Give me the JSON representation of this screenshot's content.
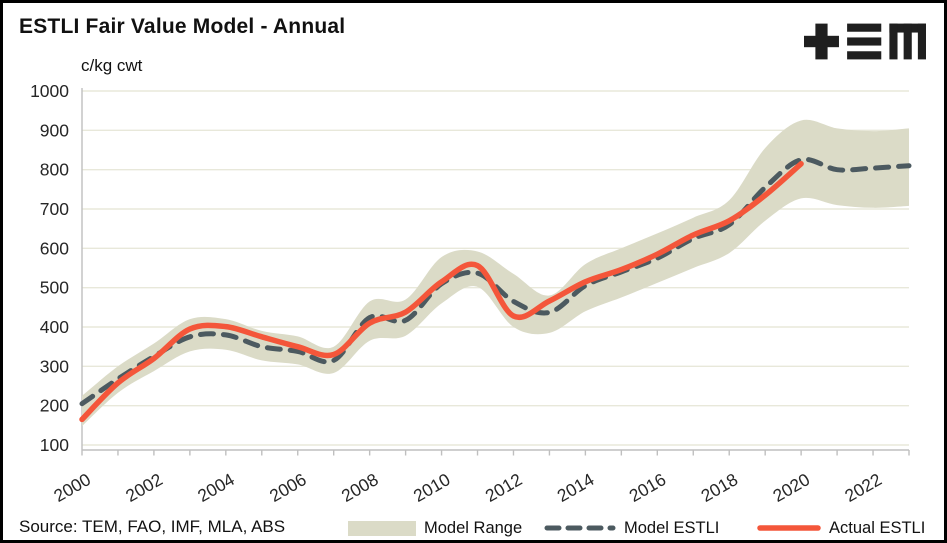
{
  "title": "ESTLI Fair Value Model - Annual",
  "unit_label": "c/kg cwt",
  "source_text": "Source: TEM, FAO, IMF, MLA, ABS",
  "logo_name": "tem-logo",
  "colors": {
    "band": "#dbdbc7",
    "model_line": "#4c5a60",
    "actual_line": "#f4563a",
    "gridline": "#e8e8da",
    "axis": "#bfbfbf",
    "axis_text": "#262626",
    "title_text": "#111111",
    "logo": "#1f1f1f",
    "background": "#ffffff",
    "border": "#000000"
  },
  "legend": {
    "items": [
      {
        "label": "Model Range",
        "type": "band"
      },
      {
        "label": "Model ESTLI",
        "type": "dashed"
      },
      {
        "label": "Actual ESTLI",
        "type": "solid"
      }
    ]
  },
  "chart_data": {
    "type": "line",
    "title": "ESTLI Fair Value Model - Annual",
    "ylabel": "c/kg cwt",
    "xlabel": "",
    "ylim": [
      100,
      1000
    ],
    "ytick_step": 100,
    "xlabel_step": 2,
    "grid": true,
    "legend_position": "bottom",
    "x": [
      2000,
      2001,
      2002,
      2003,
      2004,
      2005,
      2006,
      2007,
      2008,
      2009,
      2010,
      2011,
      2012,
      2013,
      2014,
      2015,
      2016,
      2017,
      2018,
      2019,
      2020,
      2021,
      2022,
      2023
    ],
    "series": [
      {
        "name": "Model Range (upper)",
        "role": "band_top",
        "values": [
          225,
          300,
          358,
          420,
          420,
          390,
          376,
          350,
          465,
          470,
          578,
          592,
          535,
          480,
          560,
          600,
          638,
          678,
          722,
          855,
          925,
          905,
          898,
          905
        ]
      },
      {
        "name": "Model Range (lower)",
        "role": "band_bottom",
        "values": [
          148,
          233,
          288,
          338,
          342,
          315,
          305,
          283,
          365,
          378,
          460,
          502,
          400,
          385,
          440,
          475,
          512,
          550,
          588,
          670,
          727,
          710,
          703,
          708
        ]
      },
      {
        "name": "Model ESTLI",
        "role": "dashed_line",
        "values": [
          205,
          268,
          325,
          375,
          380,
          350,
          338,
          315,
          424,
          417,
          510,
          537,
          465,
          437,
          505,
          540,
          575,
          625,
          660,
          755,
          825,
          800,
          804,
          810
        ]
      },
      {
        "name": "Actual ESTLI",
        "role": "solid_line",
        "values": [
          165,
          258,
          320,
          395,
          401,
          375,
          350,
          330,
          410,
          438,
          515,
          556,
          428,
          466,
          515,
          546,
          585,
          634,
          670,
          735,
          815,
          null,
          null,
          null
        ]
      }
    ]
  }
}
